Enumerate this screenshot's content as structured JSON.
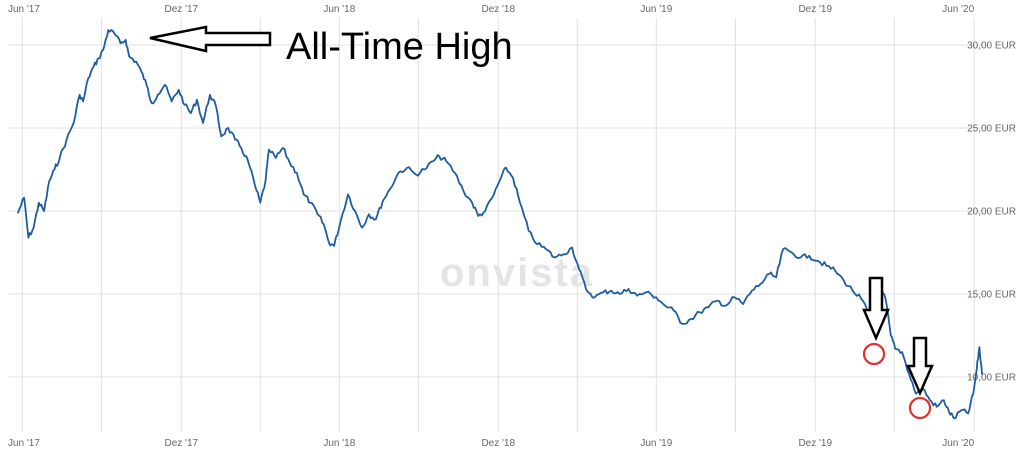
{
  "watermark": "onvista",
  "annotation": {
    "text": "All-Time High"
  },
  "colors": {
    "line": "#1f5d9f",
    "grid": "#e0e0e0",
    "circle": "#e03030",
    "arrow": "#000000",
    "tick": "#666666"
  },
  "chart_data": {
    "type": "line",
    "y_unit": "EUR",
    "ylim": [
      7,
      32
    ],
    "yticks": [
      {
        "value": 10,
        "label": "10,00 EUR"
      },
      {
        "value": 15,
        "label": "15,00 EUR"
      },
      {
        "value": 20,
        "label": "20,00 EUR"
      },
      {
        "value": 25,
        "label": "25,00 EUR"
      },
      {
        "value": 30,
        "label": "30,00 EUR"
      }
    ],
    "xticks": [
      {
        "date": "2017-06-01",
        "label": "Jun '17"
      },
      {
        "date": "2017-12-01",
        "label": "Dez '17"
      },
      {
        "date": "2018-06-01",
        "label": "Jun '18"
      },
      {
        "date": "2018-12-01",
        "label": "Dez '18"
      },
      {
        "date": "2019-06-01",
        "label": "Jun '19"
      },
      {
        "date": "2019-12-01",
        "label": "Dez '19"
      },
      {
        "date": "2020-06-01",
        "label": "Jun '20"
      }
    ],
    "xlim": [
      "2017-05-27",
      "2020-06-10"
    ],
    "grid": true,
    "series": [
      {
        "points": [
          [
            "2017-05-27",
            19.9
          ],
          [
            "2017-06-03",
            20.8
          ],
          [
            "2017-06-08",
            18.4
          ],
          [
            "2017-06-14",
            19.0
          ],
          [
            "2017-06-20",
            20.5
          ],
          [
            "2017-06-26",
            20.0
          ],
          [
            "2017-07-02",
            21.8
          ],
          [
            "2017-07-08",
            22.5
          ],
          [
            "2017-07-14",
            23.2
          ],
          [
            "2017-07-22",
            24.3
          ],
          [
            "2017-07-30",
            25.3
          ],
          [
            "2017-08-06",
            27.0
          ],
          [
            "2017-08-10",
            26.6
          ],
          [
            "2017-08-16",
            28.0
          ],
          [
            "2017-08-22",
            28.7
          ],
          [
            "2017-08-28",
            29.2
          ],
          [
            "2017-09-02",
            29.7
          ],
          [
            "2017-09-08",
            30.9
          ],
          [
            "2017-09-15",
            30.7
          ],
          [
            "2017-09-22",
            30.1
          ],
          [
            "2017-09-28",
            30.3
          ],
          [
            "2017-10-02",
            29.3
          ],
          [
            "2017-10-10",
            29.0
          ],
          [
            "2017-10-16",
            28.4
          ],
          [
            "2017-10-22",
            27.6
          ],
          [
            "2017-10-28",
            26.5
          ],
          [
            "2017-11-04",
            27.0
          ],
          [
            "2017-11-12",
            27.6
          ],
          [
            "2017-11-20",
            26.6
          ],
          [
            "2017-11-28",
            27.3
          ],
          [
            "2017-12-05",
            26.4
          ],
          [
            "2017-12-12",
            25.9
          ],
          [
            "2017-12-19",
            26.7
          ],
          [
            "2017-12-26",
            25.3
          ],
          [
            "2018-01-03",
            27.0
          ],
          [
            "2018-01-10",
            26.3
          ],
          [
            "2018-01-16",
            24.5
          ],
          [
            "2018-01-24",
            25.0
          ],
          [
            "2018-02-01",
            24.3
          ],
          [
            "2018-02-08",
            23.8
          ],
          [
            "2018-02-16",
            23.0
          ],
          [
            "2018-02-24",
            21.5
          ],
          [
            "2018-03-02",
            20.5
          ],
          [
            "2018-03-08",
            21.8
          ],
          [
            "2018-03-12",
            23.7
          ],
          [
            "2018-03-20",
            23.2
          ],
          [
            "2018-03-28",
            23.8
          ],
          [
            "2018-04-05",
            22.9
          ],
          [
            "2018-04-13",
            22.3
          ],
          [
            "2018-04-21",
            21.0
          ],
          [
            "2018-04-29",
            20.5
          ],
          [
            "2018-05-07",
            19.8
          ],
          [
            "2018-05-14",
            19.2
          ],
          [
            "2018-05-20",
            18.1
          ],
          [
            "2018-05-26",
            17.9
          ],
          [
            "2018-06-03",
            19.5
          ],
          [
            "2018-06-11",
            21.0
          ],
          [
            "2018-06-19",
            20.0
          ],
          [
            "2018-06-27",
            19.0
          ],
          [
            "2018-07-05",
            19.8
          ],
          [
            "2018-07-13",
            19.5
          ],
          [
            "2018-07-21",
            20.6
          ],
          [
            "2018-07-29",
            21.3
          ],
          [
            "2018-08-08",
            22.3
          ],
          [
            "2018-08-18",
            22.6
          ],
          [
            "2018-08-28",
            22.2
          ],
          [
            "2018-09-07",
            22.5
          ],
          [
            "2018-09-17",
            23.0
          ],
          [
            "2018-09-24",
            23.3
          ],
          [
            "2018-10-02",
            23.0
          ],
          [
            "2018-10-12",
            22.3
          ],
          [
            "2018-10-22",
            21.2
          ],
          [
            "2018-11-01",
            20.5
          ],
          [
            "2018-11-08",
            19.7
          ],
          [
            "2018-11-16",
            20.0
          ],
          [
            "2018-11-26",
            21.0
          ],
          [
            "2018-12-04",
            22.0
          ],
          [
            "2018-12-10",
            22.6
          ],
          [
            "2018-12-18",
            22.0
          ],
          [
            "2018-12-26",
            20.5
          ],
          [
            "2019-01-05",
            18.8
          ],
          [
            "2019-01-15",
            18.0
          ],
          [
            "2019-01-25",
            17.7
          ],
          [
            "2019-02-04",
            17.2
          ],
          [
            "2019-02-14",
            17.4
          ],
          [
            "2019-02-24",
            17.8
          ],
          [
            "2019-03-04",
            16.5
          ],
          [
            "2019-03-12",
            15.3
          ],
          [
            "2019-03-22",
            14.8
          ],
          [
            "2019-04-01",
            15.1
          ],
          [
            "2019-04-10",
            15.2
          ],
          [
            "2019-04-20",
            15.0
          ],
          [
            "2019-04-30",
            15.3
          ],
          [
            "2019-05-10",
            14.9
          ],
          [
            "2019-05-20",
            15.1
          ],
          [
            "2019-06-01",
            14.8
          ],
          [
            "2019-06-11",
            14.3
          ],
          [
            "2019-06-21",
            14.0
          ],
          [
            "2019-07-01",
            13.2
          ],
          [
            "2019-07-11",
            13.5
          ],
          [
            "2019-07-21",
            13.9
          ],
          [
            "2019-07-31",
            14.2
          ],
          [
            "2019-08-10",
            14.6
          ],
          [
            "2019-08-20",
            14.3
          ],
          [
            "2019-08-30",
            14.8
          ],
          [
            "2019-09-09",
            14.4
          ],
          [
            "2019-09-19",
            15.2
          ],
          [
            "2019-09-29",
            15.6
          ],
          [
            "2019-10-09",
            16.2
          ],
          [
            "2019-10-17",
            16.0
          ],
          [
            "2019-10-25",
            17.7
          ],
          [
            "2019-11-04",
            17.5
          ],
          [
            "2019-11-14",
            17.2
          ],
          [
            "2019-11-24",
            17.3
          ],
          [
            "2019-12-04",
            17.0
          ],
          [
            "2019-12-14",
            16.7
          ],
          [
            "2019-12-24",
            16.4
          ],
          [
            "2020-01-03",
            15.8
          ],
          [
            "2020-01-13",
            15.2
          ],
          [
            "2020-01-23",
            14.7
          ],
          [
            "2020-01-31",
            13.9
          ],
          [
            "2020-02-08",
            14.3
          ],
          [
            "2020-02-14",
            15.3
          ],
          [
            "2020-02-20",
            14.7
          ],
          [
            "2020-02-26",
            12.5
          ],
          [
            "2020-03-02",
            11.7
          ],
          [
            "2020-03-10",
            11.5
          ],
          [
            "2020-03-18",
            10.2
          ],
          [
            "2020-03-26",
            9.0
          ],
          [
            "2020-04-03",
            9.3
          ],
          [
            "2020-04-11",
            8.6
          ],
          [
            "2020-04-19",
            8.2
          ],
          [
            "2020-04-27",
            8.6
          ],
          [
            "2020-05-03",
            7.9
          ],
          [
            "2020-05-09",
            7.5
          ],
          [
            "2020-05-17",
            8.0
          ],
          [
            "2020-05-25",
            7.8
          ],
          [
            "2020-05-31",
            9.0
          ],
          [
            "2020-06-04",
            10.5
          ],
          [
            "2020-06-07",
            11.8
          ],
          [
            "2020-06-10",
            10.2
          ]
        ]
      }
    ]
  }
}
